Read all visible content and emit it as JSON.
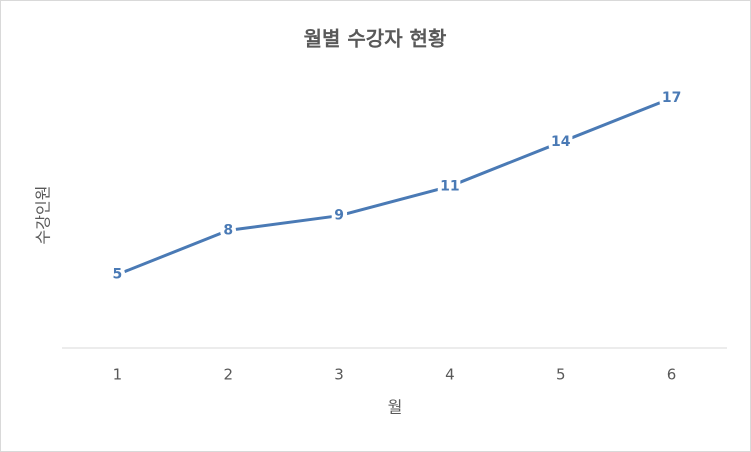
{
  "chart_data": {
    "type": "line",
    "title": "월별 수강자 현황",
    "x_label": "월",
    "y_label": "수강인원",
    "categories": [
      "1",
      "2",
      "3",
      "4",
      "5",
      "6"
    ],
    "values": [
      5,
      8,
      9,
      11,
      14,
      17
    ],
    "color": "#4a7ab5",
    "ylim": [
      0,
      20
    ]
  }
}
